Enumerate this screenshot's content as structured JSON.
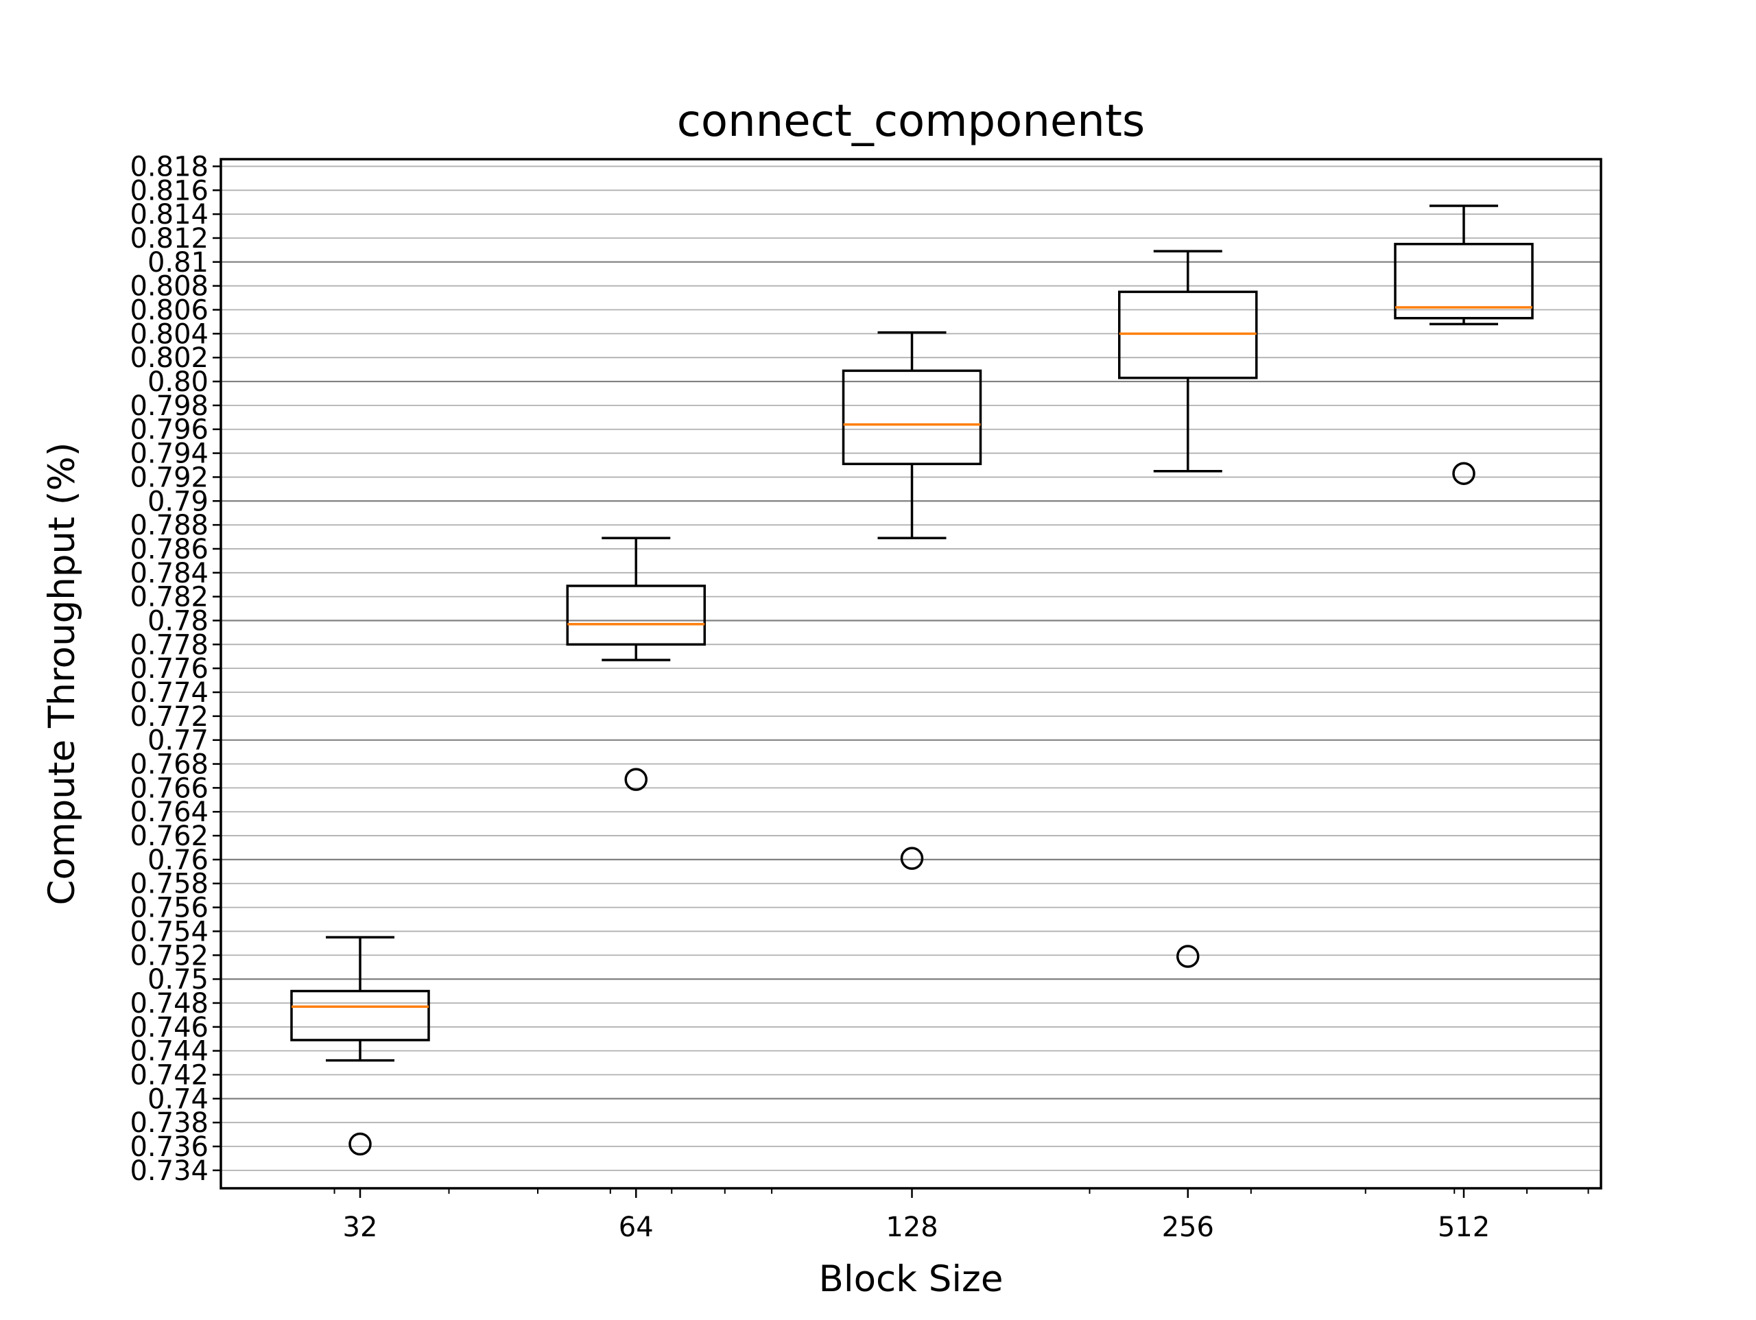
{
  "chart_data": {
    "type": "box",
    "title": "connect_components",
    "xlabel": "Block Size",
    "ylabel": "Compute Throughput (%)",
    "ylim": [
      0.7325,
      0.8186
    ],
    "grid": true,
    "y_ticks": [
      "0.734",
      "0.736",
      "0.738",
      "0.74",
      "0.742",
      "0.744",
      "0.746",
      "0.748",
      "0.75",
      "0.752",
      "0.754",
      "0.756",
      "0.758",
      "0.76",
      "0.762",
      "0.764",
      "0.766",
      "0.768",
      "0.77",
      "0.772",
      "0.774",
      "0.776",
      "0.778",
      "0.78",
      "0.782",
      "0.784",
      "0.786",
      "0.788",
      "0.79",
      "0.792",
      "0.794",
      "0.796",
      "0.798",
      "0.80",
      "0.802",
      "0.804",
      "0.806",
      "0.808",
      "0.81",
      "0.812",
      "0.814",
      "0.816",
      "0.818"
    ],
    "categories": [
      "32",
      "64",
      "128",
      "256",
      "512"
    ],
    "boxes": [
      {
        "category": "32",
        "whisker_low": 0.7432,
        "q1": 0.7449,
        "median": 0.7477,
        "q3": 0.749,
        "whisker_high": 0.7535,
        "outliers": [
          0.7362
        ]
      },
      {
        "category": "64",
        "whisker_low": 0.7767,
        "q1": 0.778,
        "median": 0.7797,
        "q3": 0.7829,
        "whisker_high": 0.7869,
        "outliers": [
          0.7667
        ]
      },
      {
        "category": "128",
        "whisker_low": 0.7869,
        "q1": 0.7931,
        "median": 0.7964,
        "q3": 0.8009,
        "whisker_high": 0.8041,
        "outliers": [
          0.7601
        ]
      },
      {
        "category": "256",
        "whisker_low": 0.7925,
        "q1": 0.8003,
        "median": 0.804,
        "q3": 0.8075,
        "whisker_high": 0.8109,
        "outliers": [
          0.7519
        ]
      },
      {
        "category": "512",
        "whisker_low": 0.8048,
        "q1": 0.8053,
        "median": 0.8062,
        "q3": 0.8115,
        "whisker_high": 0.8147,
        "outliers": [
          0.7923
        ]
      }
    ],
    "colors": {
      "box": "#000000",
      "median": "#ff7f0e",
      "grid_major": "#808080",
      "grid_minor": "#b0b0b0"
    }
  }
}
